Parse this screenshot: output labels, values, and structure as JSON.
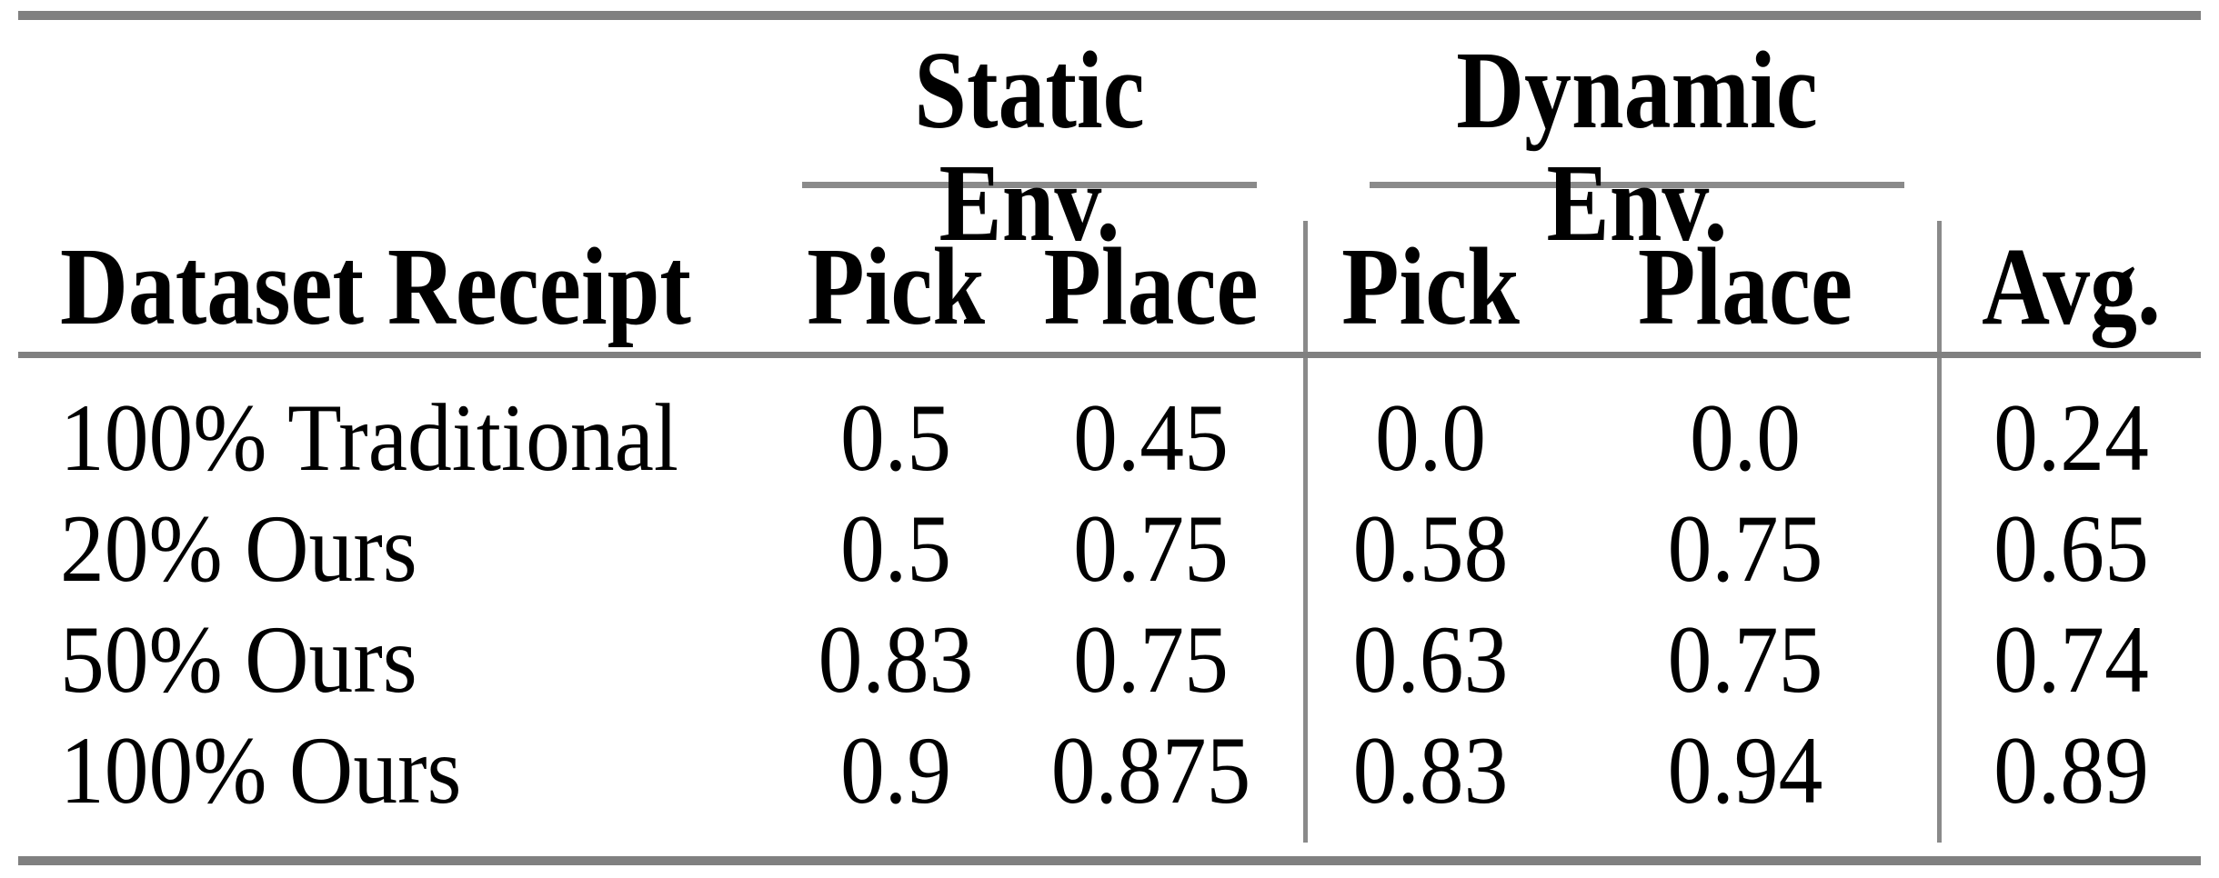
{
  "table": {
    "group_headers": {
      "static": "Static Env.",
      "dynamic": "Dynamic Env."
    },
    "column_headers": {
      "dataset": "Dataset Receipt",
      "static_pick": "Pick",
      "static_place": "Place",
      "dynamic_pick": "Pick",
      "dynamic_place": "Place",
      "avg": "Avg."
    },
    "rows": [
      {
        "label": "100% Traditional",
        "static_pick": "0.5",
        "static_place": "0.45",
        "dynamic_pick": "0.0",
        "dynamic_place": "0.0",
        "avg": "0.24"
      },
      {
        "label": "20% Ours",
        "static_pick": "0.5",
        "static_place": "0.75",
        "dynamic_pick": "0.58",
        "dynamic_place": "0.75",
        "avg": "0.65"
      },
      {
        "label": "50% Ours",
        "static_pick": "0.83",
        "static_place": "0.75",
        "dynamic_pick": "0.63",
        "dynamic_place": "0.75",
        "avg": "0.74"
      },
      {
        "label": "100% Ours",
        "static_pick": "0.9",
        "static_place": "0.875",
        "dynamic_pick": "0.83",
        "dynamic_place": "0.94",
        "avg": "0.89"
      }
    ],
    "colors": {
      "thick_rule": "#808080",
      "thin_rule": "#8a8a8a",
      "text": "#000000",
      "background": "#ffffff"
    }
  }
}
